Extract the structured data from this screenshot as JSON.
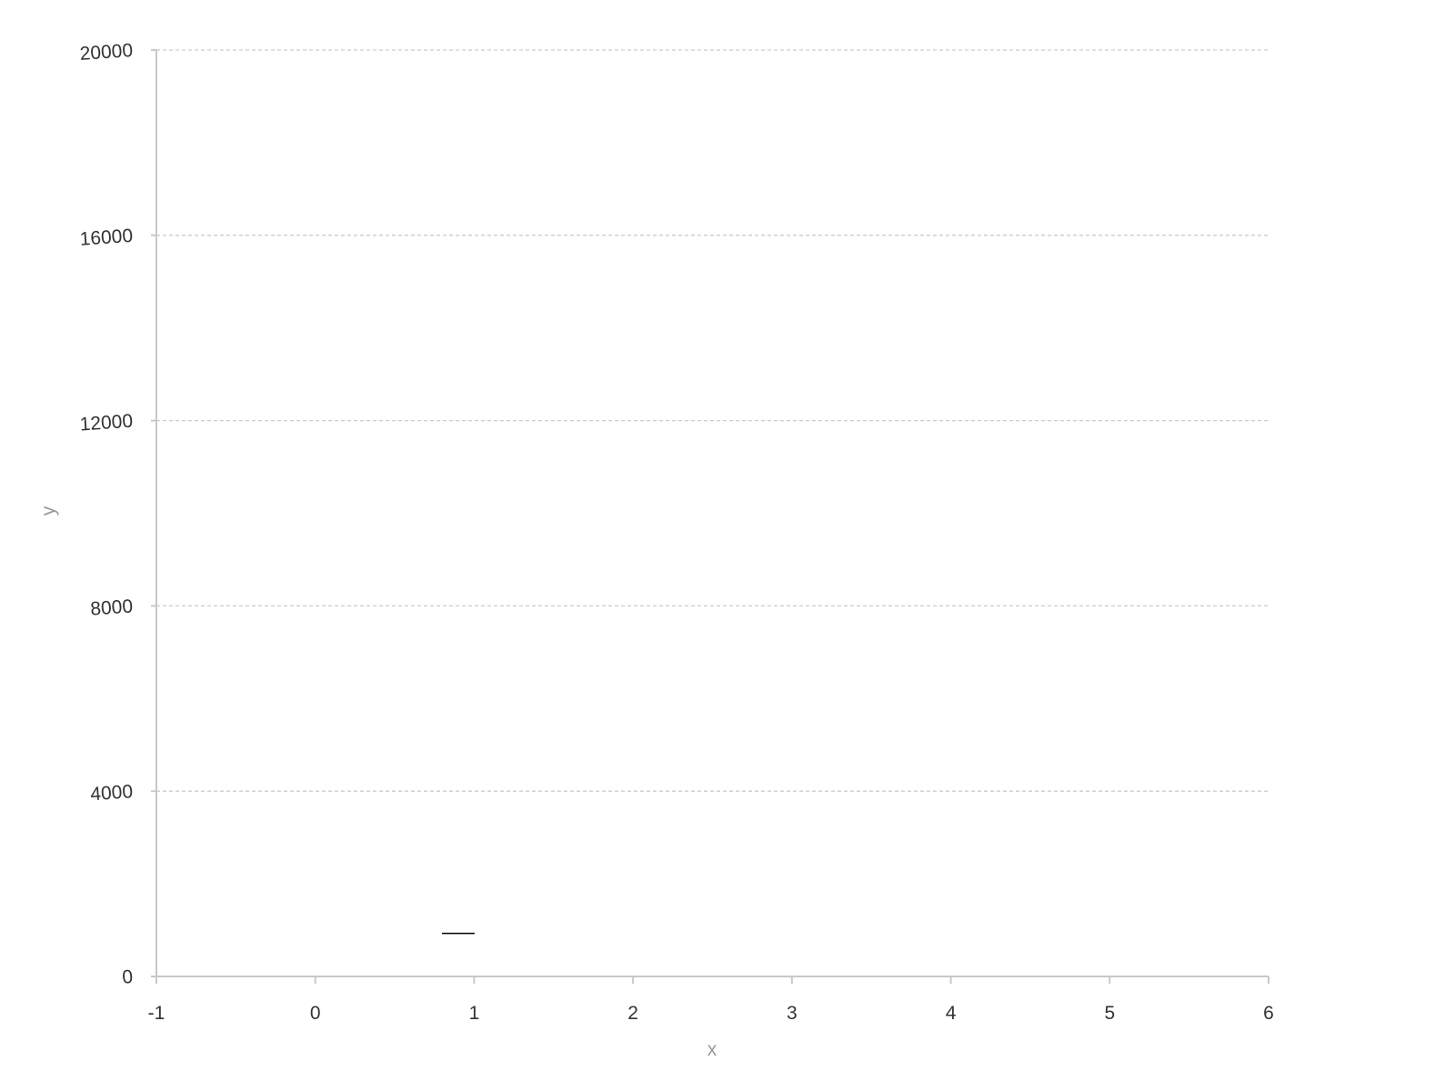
{
  "chart_data": {
    "type": "bar",
    "title": "",
    "xlabel": "x",
    "ylabel": "y",
    "xlim": [
      -1,
      6
    ],
    "ylim": [
      0,
      20000
    ],
    "x_ticks": [
      "-1",
      "0",
      "1",
      "2",
      "3",
      "4",
      "5",
      "6"
    ],
    "y_ticks": [
      "0",
      "4000",
      "8000",
      "12000",
      "16000",
      "20000"
    ],
    "grid": true,
    "colors": {
      "grid": "#cccccc",
      "axis": "#c8c8c8",
      "tick_text": "#333333",
      "axis_title": "#999999",
      "marker": "#000000"
    },
    "series": [
      {
        "x": [
          0.9
        ],
        "values": [
          930
        ]
      }
    ]
  }
}
